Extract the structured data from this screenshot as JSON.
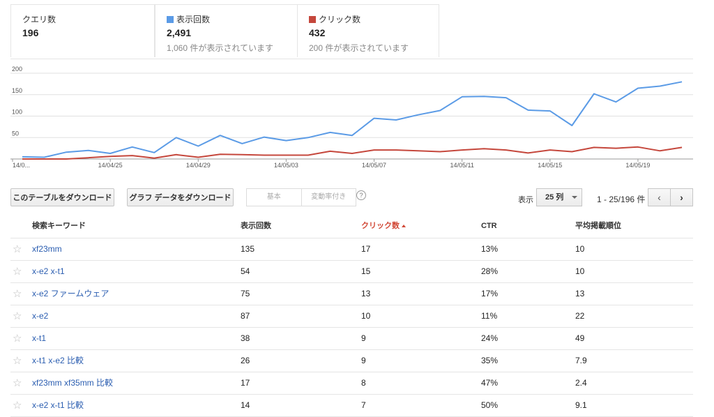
{
  "summary": {
    "queries": {
      "label": "クエリ数",
      "value": "196"
    },
    "impressions": {
      "label": "表示回数",
      "value": "2,491",
      "sub": "1,060 件が表示されています",
      "color": "#5b9be6"
    },
    "clicks": {
      "label": "クリック数",
      "value": "432",
      "sub": "200 件が表示されています",
      "color": "#c5473c"
    }
  },
  "chart_data": {
    "type": "line",
    "x_tick_labels": [
      "14/0...",
      "14/04/25",
      "14/04/29",
      "14/05/03",
      "14/05/07",
      "14/05/11",
      "14/05/15",
      "14/05/19"
    ],
    "y_ticks": [
      50,
      100,
      150,
      200
    ],
    "ylim": [
      0,
      200
    ],
    "series": [
      {
        "name": "表示回数",
        "color": "#5b9be6",
        "values": [
          5,
          4,
          16,
          20,
          13,
          28,
          15,
          50,
          30,
          55,
          36,
          51,
          43,
          50,
          62,
          55,
          95,
          91,
          103,
          113,
          145,
          146,
          143,
          114,
          112,
          78,
          152,
          133,
          165,
          170,
          180
        ]
      },
      {
        "name": "クリック数",
        "color": "#c5473c",
        "values": [
          0,
          0,
          0,
          3,
          6,
          8,
          2,
          10,
          4,
          11,
          10,
          9,
          9,
          9,
          18,
          13,
          21,
          21,
          19,
          17,
          21,
          24,
          21,
          14,
          21,
          17,
          27,
          25,
          28,
          19,
          27
        ]
      }
    ]
  },
  "toolbar": {
    "download_table": "このテーブルをダウンロード",
    "download_chart": "グラフ データをダウンロード",
    "tab_basic": "基本",
    "tab_change": "変動率付き",
    "help": "?",
    "show_label": "表示",
    "rows_select": "25 列",
    "range": "1 - 25/196 件",
    "prev": "‹",
    "next": "›"
  },
  "table": {
    "headers": {
      "keyword": "検索キーワード",
      "impressions": "表示回数",
      "clicks": "クリック数",
      "ctr": "CTR",
      "position": "平均掲載順位"
    },
    "rows": [
      {
        "keyword": "xf23mm",
        "impressions": "135",
        "clicks": "17",
        "ctr": "13%",
        "position": "10"
      },
      {
        "keyword": "x-e2 x-t1",
        "impressions": "54",
        "clicks": "15",
        "ctr": "28%",
        "position": "10"
      },
      {
        "keyword": "x-e2 ファームウェア",
        "impressions": "75",
        "clicks": "13",
        "ctr": "17%",
        "position": "13"
      },
      {
        "keyword": "x-e2",
        "impressions": "87",
        "clicks": "10",
        "ctr": "11%",
        "position": "22"
      },
      {
        "keyword": "x-t1",
        "impressions": "38",
        "clicks": "9",
        "ctr": "24%",
        "position": "49"
      },
      {
        "keyword": "x-t1 x-e2 比較",
        "impressions": "26",
        "clicks": "9",
        "ctr": "35%",
        "position": "7.9"
      },
      {
        "keyword": "xf23mm xf35mm 比較",
        "impressions": "17",
        "clicks": "8",
        "ctr": "47%",
        "position": "2.4"
      },
      {
        "keyword": "x-e2 x-t1 比較",
        "impressions": "14",
        "clicks": "7",
        "ctr": "50%",
        "position": "9.1"
      }
    ]
  }
}
